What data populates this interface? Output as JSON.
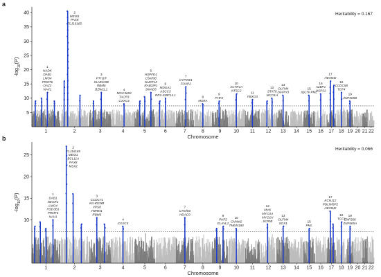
{
  "chart_data": [
    {
      "type": "scatter",
      "panel": "a",
      "heritability_label": "Heritability = 0.167",
      "xlabel": "Chromosome",
      "ylabel_prefix": "-log",
      "ylabel_sub": "10",
      "ylabel_suffix": "(P)",
      "ylim": [
        0,
        42
      ],
      "yticks": [
        5,
        10,
        15,
        20,
        25,
        30,
        35,
        40
      ],
      "x_categories": [
        "1",
        "2",
        "3",
        "4",
        "5",
        "6",
        "7",
        "8",
        "9",
        "10",
        "11",
        "12",
        "13",
        "14",
        "15",
        "16",
        "17",
        "18",
        "19",
        "20",
        "21",
        "22"
      ],
      "significance_threshold": 7.3,
      "grid": false,
      "peaks": [
        {
          "chr": "1",
          "pos": 0.12,
          "p": 9.0
        },
        {
          "chr": "1",
          "pos": 0.35,
          "p": 10.0
        },
        {
          "chr": "1",
          "pos": 0.55,
          "p": 12.0
        },
        {
          "chr": "1",
          "pos": 0.8,
          "p": 9.0
        },
        {
          "chr": "2",
          "pos": 0.12,
          "p": 16.0
        },
        {
          "chr": "2",
          "pos": 0.25,
          "p": 40.5
        },
        {
          "chr": "2",
          "pos": 0.7,
          "p": 11.0
        },
        {
          "chr": "3",
          "pos": 0.2,
          "p": 9.0
        },
        {
          "chr": "3",
          "pos": 0.55,
          "p": 12.0
        },
        {
          "chr": "4",
          "pos": 0.55,
          "p": 8.0
        },
        {
          "chr": "5",
          "pos": 0.25,
          "p": 9.0
        },
        {
          "chr": "5",
          "pos": 0.5,
          "p": 10.5
        },
        {
          "chr": "5",
          "pos": 0.8,
          "p": 12.0
        },
        {
          "chr": "6",
          "pos": 0.2,
          "p": 9.0
        },
        {
          "chr": "6",
          "pos": 0.5,
          "p": 10.0
        },
        {
          "chr": "7",
          "pos": 0.55,
          "p": 14.0
        },
        {
          "chr": "8",
          "pos": 0.5,
          "p": 8.0
        },
        {
          "chr": "9",
          "pos": 0.45,
          "p": 9.0
        },
        {
          "chr": "10",
          "pos": 0.5,
          "p": 11.5
        },
        {
          "chr": "11",
          "pos": 0.5,
          "p": 9.5
        },
        {
          "chr": "12",
          "pos": 0.4,
          "p": 9.0
        },
        {
          "chr": "12",
          "pos": 0.75,
          "p": 10.0
        },
        {
          "chr": "13",
          "pos": 0.5,
          "p": 11.0
        },
        {
          "chr": "15",
          "pos": 0.5,
          "p": 11.0
        },
        {
          "chr": "16",
          "pos": 0.5,
          "p": 11.5
        },
        {
          "chr": "17",
          "pos": 0.4,
          "p": 16.0
        },
        {
          "chr": "17",
          "pos": 0.75,
          "p": 14.5
        },
        {
          "chr": "18",
          "pos": 0.5,
          "p": 12.0
        },
        {
          "chr": "19",
          "pos": 0.5,
          "p": 9.0
        }
      ],
      "annotations": [
        {
          "chr": "1",
          "label": "1",
          "genes": [
            "NADK",
            "DAB1",
            "LMO4",
            "PRMT6",
            "OAZ3",
            "NAV1"
          ]
        },
        {
          "chr": "2",
          "label": "2",
          "genes": [
            "MEIS1",
            "PAX8",
            "FLJ16165"
          ]
        },
        {
          "chr": "3",
          "label": "3",
          "genes": [
            "PTH1R",
            "KLHDC8B",
            "RBM6",
            "BZW1L1"
          ]
        },
        {
          "chr": "4",
          "label": "4",
          "genes": [
            "MGC4659",
            "TACR3",
            "CXXC4"
          ]
        },
        {
          "chr": "5",
          "label": "5",
          "genes": [
            "HSPFD1",
            "C5orf30",
            "NUDT12",
            "RAB3IP1",
            "SMAD5"
          ]
        },
        {
          "chr": "6",
          "label": "6",
          "genes": [
            "MDGA1",
            "ASCC3",
            "RP3-439F14.1"
          ]
        },
        {
          "chr": "7",
          "label": "7",
          "genes": [
            "CYP3W1",
            "FOXP2"
          ]
        },
        {
          "chr": "8",
          "label": "8",
          "genes": [
            "MSRA"
          ]
        },
        {
          "chr": "9",
          "label": "9",
          "genes": [
            "PHF2"
          ]
        },
        {
          "chr": "10",
          "label": "10",
          "genes": [
            "ACTR1A",
            "NT5C2"
          ]
        },
        {
          "chr": "11",
          "label": "11",
          "genes": [
            "FBXO3"
          ]
        },
        {
          "chr": "12",
          "label": "12",
          "genes": [
            "STAT6",
            "MYO1H"
          ]
        },
        {
          "chr": "13",
          "label": "13",
          "genes": [
            "OLFM4",
            "DIAPH3"
          ]
        },
        {
          "chr": "15",
          "label": "15",
          "genes": [
            "IQCH/ PML"
          ]
        },
        {
          "chr": "16",
          "label": "16",
          "genes": [
            "A2BP1",
            "USP31"
          ]
        },
        {
          "chr": "17",
          "label": "17",
          "genes": [
            "HEXIM2"
          ]
        },
        {
          "chr": "18",
          "label": "18",
          "genes": [
            "CCDC68",
            "TCF4"
          ]
        },
        {
          "chr": "19",
          "label": "19",
          "genes": [
            "ZNF365B"
          ]
        }
      ]
    },
    {
      "type": "scatter",
      "panel": "b",
      "heritability_label": "Heritability = 0.066",
      "xlabel": "Chromosome",
      "ylabel_prefix": "-log",
      "ylabel_sub": "10",
      "ylabel_suffix": "(P)",
      "ylim": [
        0,
        28
      ],
      "yticks": [
        10,
        15,
        20,
        25
      ],
      "x_categories": [
        "1",
        "2",
        "3",
        "4",
        "5",
        "6",
        "7",
        "8",
        "9",
        "10",
        "11",
        "12",
        "13",
        "14",
        "15",
        "16",
        "17",
        "18",
        "19",
        "20",
        "21",
        "22"
      ],
      "significance_threshold": 7.3,
      "grid": false,
      "peaks": [
        {
          "chr": "1",
          "pos": 0.1,
          "p": 8.5
        },
        {
          "chr": "1",
          "pos": 0.3,
          "p": 9.5
        },
        {
          "chr": "1",
          "pos": 0.5,
          "p": 8.0
        },
        {
          "chr": "1",
          "pos": 0.75,
          "p": 10.0
        },
        {
          "chr": "2",
          "pos": 0.2,
          "p": 27.0
        },
        {
          "chr": "2",
          "pos": 0.45,
          "p": 16.0
        },
        {
          "chr": "2",
          "pos": 0.75,
          "p": 9.0
        },
        {
          "chr": "3",
          "pos": 0.35,
          "p": 10.5
        },
        {
          "chr": "3",
          "pos": 0.7,
          "p": 9.0
        },
        {
          "chr": "4",
          "pos": 0.5,
          "p": 8.5
        },
        {
          "chr": "7",
          "pos": 0.5,
          "p": 10.5
        },
        {
          "chr": "9",
          "pos": 0.3,
          "p": 8.0
        },
        {
          "chr": "9",
          "pos": 0.7,
          "p": 8.5
        },
        {
          "chr": "10",
          "pos": 0.5,
          "p": 8.0
        },
        {
          "chr": "12",
          "pos": 0.45,
          "p": 9.0
        },
        {
          "chr": "13",
          "pos": 0.5,
          "p": 8.5
        },
        {
          "chr": "15",
          "pos": 0.5,
          "p": 8.0
        },
        {
          "chr": "17",
          "pos": 0.4,
          "p": 12.0
        },
        {
          "chr": "17",
          "pos": 0.7,
          "p": 9.0
        },
        {
          "chr": "18",
          "pos": 0.5,
          "p": 9.5
        },
        {
          "chr": "19",
          "pos": 0.5,
          "p": 8.5
        }
      ],
      "annotations": [
        {
          "chr": "1",
          "label": "1",
          "genes": [
            "DAB1",
            "NEGR1",
            "LMO4",
            "HSD3B1",
            "PRMT6",
            "NAV1"
          ]
        },
        {
          "chr": "2",
          "label": "2",
          "genes": [
            "FLJ16165",
            "MEIS1",
            "BCL11A",
            "PAX8",
            "MSX2"
          ]
        },
        {
          "chr": "3",
          "label": "3",
          "genes": [
            "CCDC71",
            "KLHDC8B",
            "VPS8",
            "FBRM1",
            "RBM6"
          ]
        },
        {
          "chr": "4",
          "label": "4",
          "genes": [
            "CXXC4"
          ]
        },
        {
          "chr": "7",
          "label": "7",
          "genes": [
            "C7orf50",
            "HDAC9"
          ]
        },
        {
          "chr": "9",
          "label": "9",
          "genes": [
            "PHF2",
            "ELAVL2"
          ]
        },
        {
          "chr": "10",
          "label": "10",
          "genes": [
            "CNNM2",
            "TMEM180"
          ]
        },
        {
          "chr": "12",
          "label": "12",
          "genes": [
            "MVK",
            "MYO1A",
            "MYO1H",
            "SCRIB"
          ]
        },
        {
          "chr": "13",
          "label": "13",
          "genes": [
            "OLFM4",
            "SOX1"
          ]
        },
        {
          "chr": "15",
          "label": "15",
          "genes": [
            "PML"
          ]
        },
        {
          "chr": "17",
          "label": "17",
          "genes": [
            "KCNJ12",
            "PDLIM5P2",
            "HEXIM2"
          ]
        },
        {
          "chr": "18",
          "label": "18",
          "genes": [
            "TCF4"
          ]
        },
        {
          "chr": "19",
          "label": "19",
          "genes": [
            "ZNF568",
            "ZNF665A"
          ]
        }
      ]
    }
  ],
  "colors": {
    "chrom_dark": "#7d7d7d",
    "chrom_light": "#bdbdbd",
    "highlight": "#1f3fc9",
    "threshold_line": "#333333",
    "axis": "#222222"
  }
}
